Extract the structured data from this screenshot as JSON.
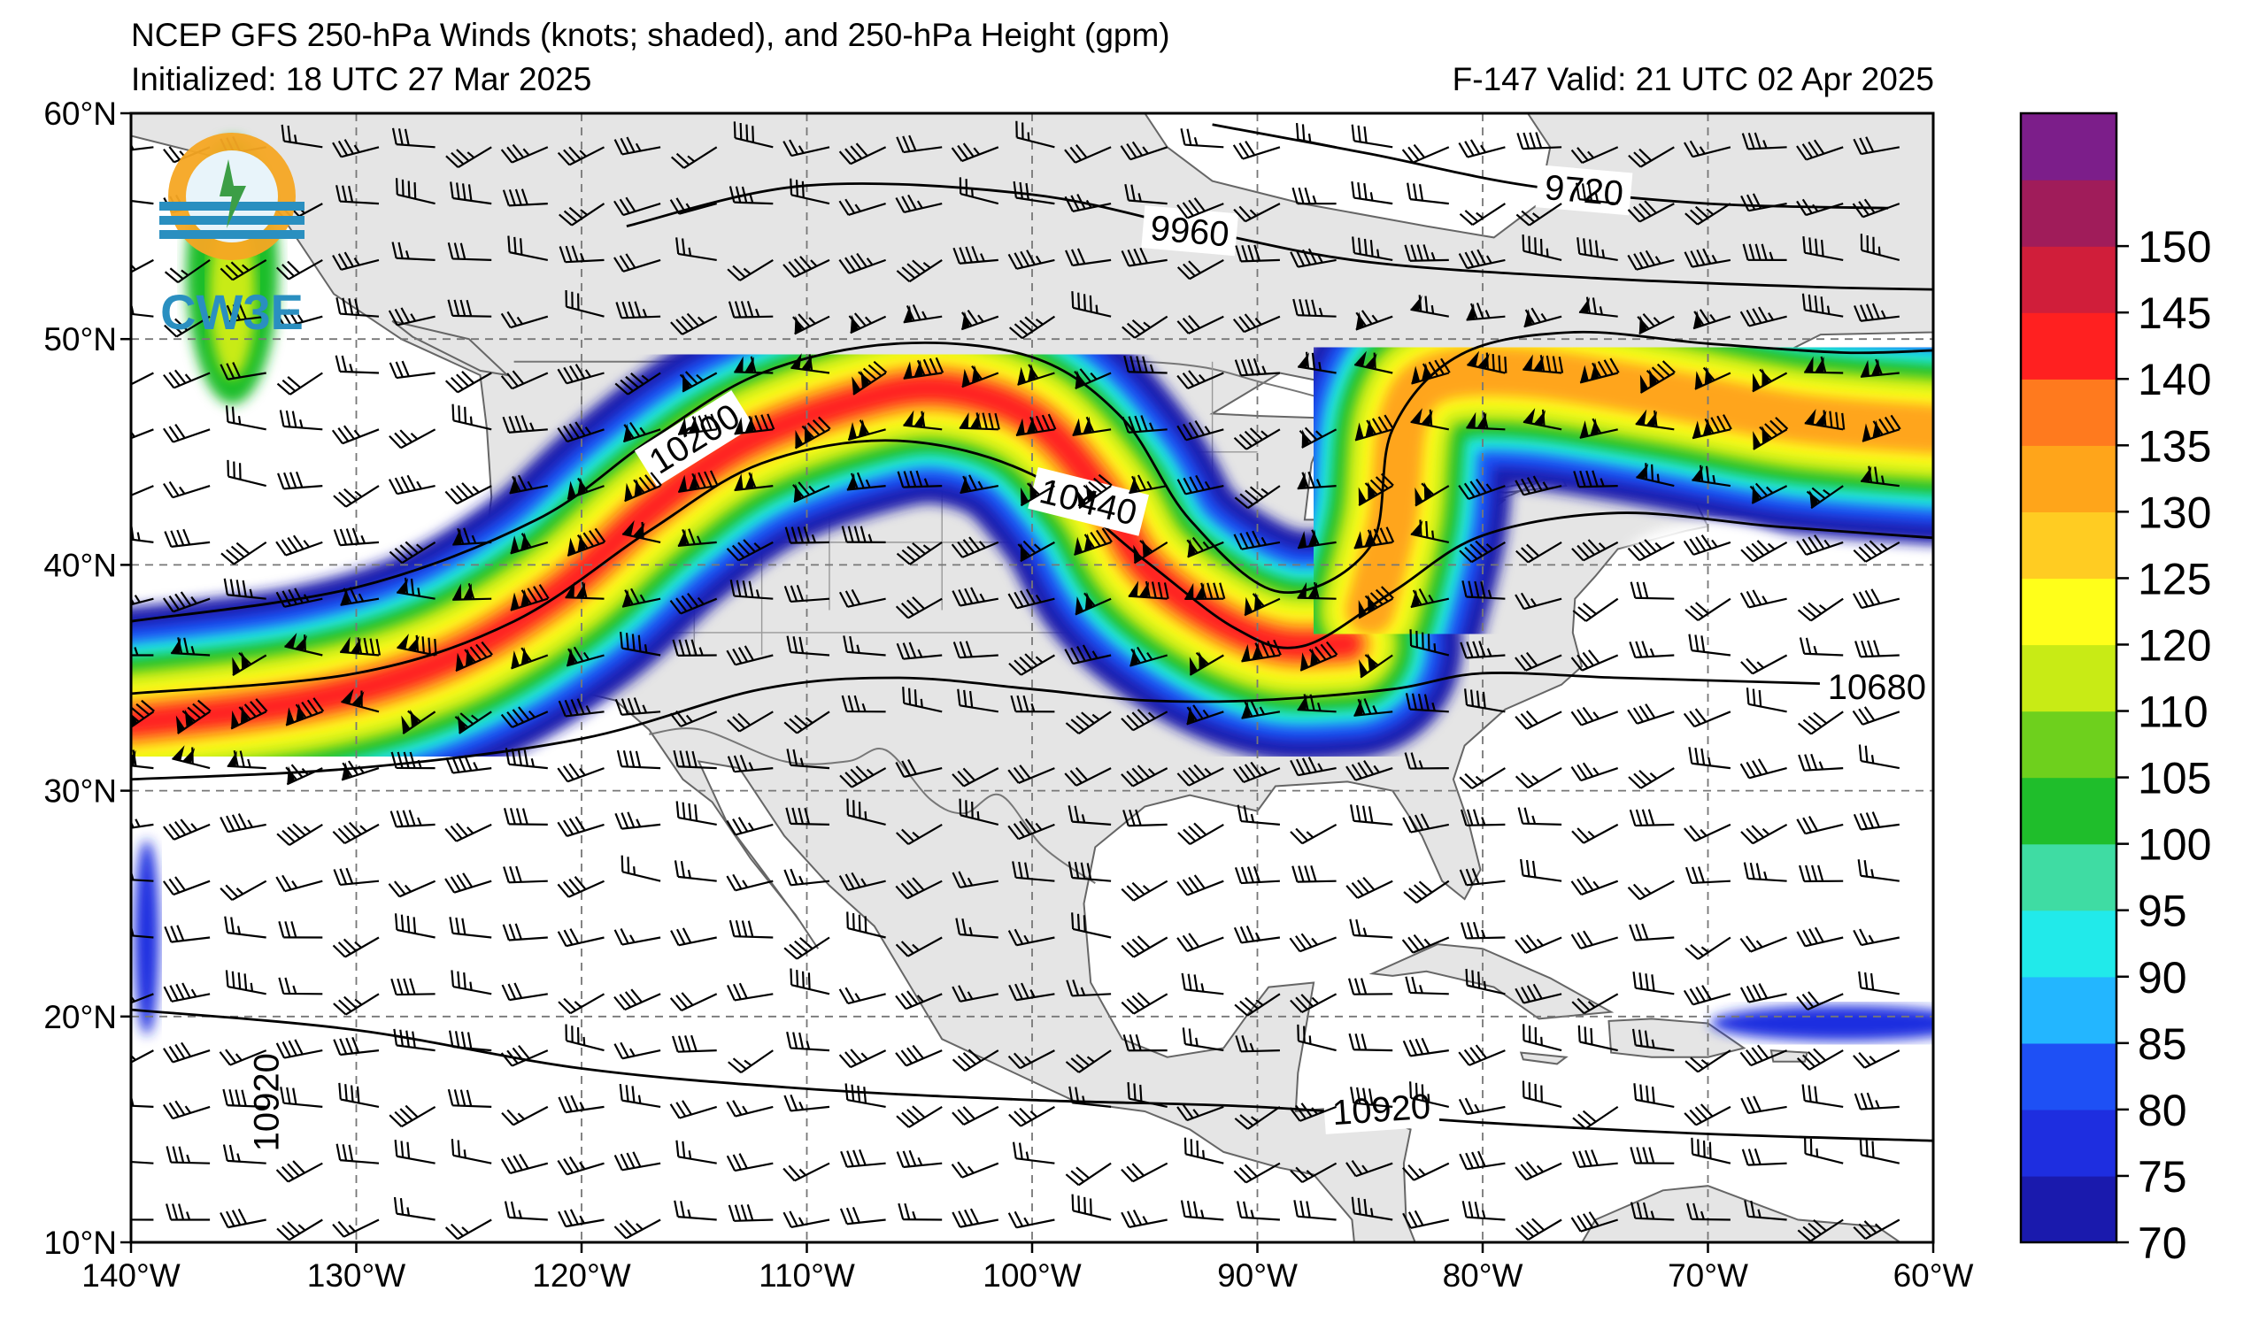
{
  "header": {
    "title_line1": "NCEP GFS 250-hPa Winds (knots; shaded), and 250-hPa Height (gpm)",
    "title_line2": "Initialized: 18 UTC 27 Mar 2025",
    "valid_line": "F-147  Valid: 21 UTC 02 Apr 2025"
  },
  "logo": {
    "text": "CW3E"
  },
  "map": {
    "lon_range": [
      -140,
      -60
    ],
    "lat_range": [
      10,
      60
    ],
    "lon_ticks": [
      {
        "value": -140,
        "label": "140°W"
      },
      {
        "value": -130,
        "label": "130°W"
      },
      {
        "value": -120,
        "label": "120°W"
      },
      {
        "value": -110,
        "label": "110°W"
      },
      {
        "value": -100,
        "label": "100°W"
      },
      {
        "value": -90,
        "label": "90°W"
      },
      {
        "value": -80,
        "label": "80°W"
      },
      {
        "value": -70,
        "label": "70°W"
      },
      {
        "value": -60,
        "label": "60°W"
      }
    ],
    "lat_ticks": [
      {
        "value": 60,
        "label": "60°N"
      },
      {
        "value": 50,
        "label": "50°N"
      },
      {
        "value": 40,
        "label": "40°N"
      },
      {
        "value": 30,
        "label": "30°N"
      },
      {
        "value": 20,
        "label": "20°N"
      },
      {
        "value": 10,
        "label": "10°N"
      }
    ],
    "land_color": "#e5e5e5",
    "ocean_color": "#ffffff",
    "grid": "dashed"
  },
  "height_contours": [
    {
      "value": 9720,
      "label": "9720",
      "points": [
        [
          -92,
          59.5
        ],
        [
          -85,
          58.2
        ],
        [
          -78,
          56.8
        ],
        [
          -70,
          56
        ],
        [
          -62,
          55.8
        ]
      ]
    },
    {
      "value": 9960,
      "label": "9960",
      "points": [
        [
          -118,
          55
        ],
        [
          -110,
          56.8
        ],
        [
          -100,
          56.4
        ],
        [
          -92,
          54.7
        ],
        [
          -85,
          53.4
        ],
        [
          -75,
          52.7
        ],
        [
          -65,
          52.3
        ],
        [
          -60,
          52.2
        ]
      ]
    },
    {
      "value": 10200,
      "label": "10200",
      "points": [
        [
          -140,
          37.5
        ],
        [
          -130,
          39
        ],
        [
          -122,
          42
        ],
        [
          -117,
          45.5
        ],
        [
          -112,
          48.5
        ],
        [
          -106,
          49.8
        ],
        [
          -100,
          49.2
        ],
        [
          -96,
          46.5
        ],
        [
          -93,
          42
        ],
        [
          -89,
          38.8
        ],
        [
          -85,
          40.8
        ],
        [
          -84,
          46
        ],
        [
          -81,
          49.3
        ],
        [
          -76,
          50.3
        ],
        [
          -70,
          49.8
        ],
        [
          -64,
          49.4
        ],
        [
          -60,
          49.5
        ]
      ]
    },
    {
      "value": 10440,
      "label": "10440",
      "points": [
        [
          -140,
          34.3
        ],
        [
          -130,
          35.2
        ],
        [
          -123,
          37.5
        ],
        [
          -117,
          41.5
        ],
        [
          -112,
          44.5
        ],
        [
          -106,
          45.5
        ],
        [
          -100,
          44
        ],
        [
          -95,
          40.2
        ],
        [
          -91,
          37.2
        ],
        [
          -88,
          36.4
        ],
        [
          -84,
          38.8
        ],
        [
          -80,
          41.3
        ],
        [
          -74,
          42.3
        ],
        [
          -67,
          41.7
        ],
        [
          -60,
          41.2
        ]
      ]
    },
    {
      "value": 10680,
      "label": "10680",
      "points": [
        [
          -140,
          30.5
        ],
        [
          -130,
          31
        ],
        [
          -120,
          32.3
        ],
        [
          -112,
          34.5
        ],
        [
          -106,
          35
        ],
        [
          -100,
          34.5
        ],
        [
          -95,
          34
        ],
        [
          -90,
          34
        ],
        [
          -84,
          34.5
        ],
        [
          -80,
          35.2
        ],
        [
          -74,
          35
        ],
        [
          -67,
          34.8
        ],
        [
          -60,
          34.6
        ]
      ]
    },
    {
      "value": 10920,
      "label": "10920",
      "points": [
        [
          -140,
          20.3
        ],
        [
          -130,
          19.4
        ],
        [
          -120,
          17.7
        ],
        [
          -110,
          16.8
        ],
        [
          -100,
          16.3
        ],
        [
          -90,
          16
        ],
        [
          -80,
          15.3
        ],
        [
          -70,
          14.8
        ],
        [
          -60,
          14.5
        ]
      ]
    }
  ],
  "jet_axes": [
    {
      "name": "west-jet",
      "points": [
        [
          -140,
          33
        ],
        [
          -132,
          34
        ],
        [
          -126,
          35.8
        ],
        [
          -121,
          38.8
        ],
        [
          -117,
          42.4
        ],
        [
          -113,
          45.3
        ],
        [
          -108,
          47.2
        ],
        [
          -104,
          47.8
        ],
        [
          -100,
          46.5
        ],
        [
          -97,
          43.3
        ],
        [
          -95,
          40
        ],
        [
          -92,
          37.7
        ],
        [
          -89,
          36.5
        ],
        [
          -86,
          36.5
        ]
      ],
      "max_knots": 145
    },
    {
      "name": "east-jet",
      "points": [
        [
          -85,
          38
        ],
        [
          -84,
          42
        ],
        [
          -83.5,
          46.5
        ],
        [
          -82,
          48.3
        ],
        [
          -78,
          48.5
        ],
        [
          -72,
          47.6
        ],
        [
          -66,
          46.5
        ],
        [
          -60,
          46
        ]
      ],
      "max_knots": 130
    }
  ],
  "colorbar": {
    "levels": [
      70,
      75,
      80,
      85,
      90,
      95,
      100,
      105,
      110,
      120,
      125,
      130,
      135,
      140,
      145,
      150,
      155
    ],
    "colors": [
      "#1a1aad",
      "#1e2ee0",
      "#1e50f5",
      "#23b6ff",
      "#21eaea",
      "#3fdca3",
      "#1fbe2b",
      "#6ed01d",
      "#c8eb15",
      "#ffff1a",
      "#ffcc22",
      "#ffa51a",
      "#ff7a1e",
      "#ff2020",
      "#d01e3a",
      "#a01c5a",
      "#7c1e8a"
    ],
    "tick_labels": [
      "70",
      "75",
      "80",
      "85",
      "90",
      "95",
      "100",
      "105",
      "110",
      "120",
      "125",
      "130",
      "135",
      "140",
      "145",
      "150"
    ]
  }
}
